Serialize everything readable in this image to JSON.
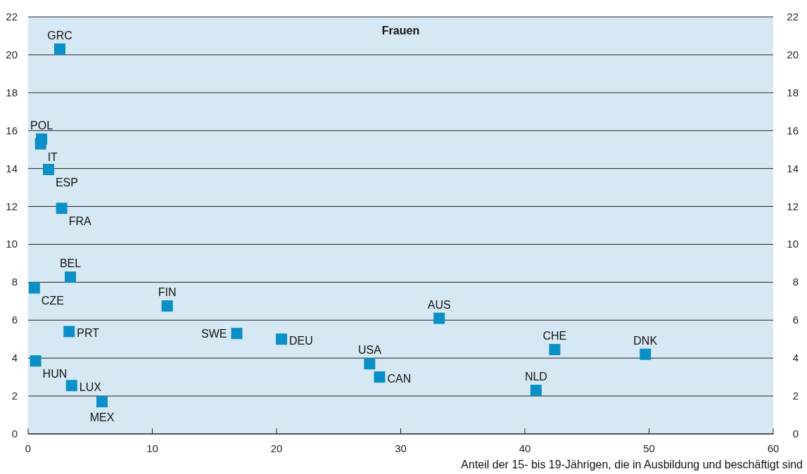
{
  "chart_data": {
    "type": "scatter",
    "title": "Frauen",
    "xlabel": "Anteil der 15- bis 19-Jährigen, die in Ausbildung und beschäftigt sind",
    "x": [
      2.55,
      1.08,
      1.0,
      1.64,
      2.7,
      3.4,
      0.5,
      11.2,
      3.3,
      16.8,
      20.4,
      33.1,
      42.4,
      49.7,
      27.5,
      28.3,
      40.9,
      0.6,
      3.5,
      5.95
    ],
    "series": [
      {
        "color": "#0a8fc6",
        "values": [
          20.3,
          15.55,
          15.3,
          13.95,
          11.9,
          8.27,
          7.7,
          6.75,
          5.4,
          5.3,
          5.0,
          6.1,
          4.45,
          4.2,
          3.7,
          3.0,
          2.3,
          3.85,
          2.55,
          1.7
        ]
      }
    ],
    "annotations": [
      {
        "text": "GRC",
        "x": 2.55,
        "y": 20.3
      },
      {
        "text": "POL",
        "x": 1.08,
        "y": 15.55
      },
      {
        "text": "IT",
        "x": 1.0,
        "y": 15.3
      },
      {
        "text": "ESP",
        "x": 1.64,
        "y": 13.95
      },
      {
        "text": "FRA",
        "x": 2.7,
        "y": 11.9
      },
      {
        "text": "BEL",
        "x": 3.4,
        "y": 8.27
      },
      {
        "text": "CZE",
        "x": 0.5,
        "y": 7.7
      },
      {
        "text": "FIN",
        "x": 11.2,
        "y": 6.75
      },
      {
        "text": "PRT",
        "x": 3.3,
        "y": 5.4
      },
      {
        "text": "SWE",
        "x": 16.8,
        "y": 5.3
      },
      {
        "text": "DEU",
        "x": 20.4,
        "y": 5.0
      },
      {
        "text": "AUS",
        "x": 33.1,
        "y": 6.1
      },
      {
        "text": "CHE",
        "x": 42.4,
        "y": 4.45
      },
      {
        "text": "DNK",
        "x": 49.7,
        "y": 4.2
      },
      {
        "text": "USA",
        "x": 27.5,
        "y": 3.7
      },
      {
        "text": "CAN",
        "x": 28.3,
        "y": 3.0
      },
      {
        "text": "NLD",
        "x": 40.9,
        "y": 2.3
      },
      {
        "text": "HUN",
        "x": 0.6,
        "y": 3.85
      },
      {
        "text": "LUX",
        "x": 3.5,
        "y": 2.55
      },
      {
        "text": "MEX",
        "x": 5.95,
        "y": 1.7
      }
    ],
    "xlim": [
      0,
      60
    ],
    "xticks": [
      0,
      10,
      20,
      30,
      40,
      50,
      60
    ],
    "ylim": [
      0,
      22
    ],
    "yticks": [
      0,
      2,
      4,
      6,
      8,
      10,
      12,
      14,
      16,
      18,
      20,
      22
    ],
    "y2lim": [
      0,
      22
    ],
    "y2ticks": [
      0,
      2,
      4,
      6,
      8,
      10,
      12,
      14,
      16,
      18,
      20,
      22
    ],
    "grid": "y",
    "marker": "square"
  }
}
